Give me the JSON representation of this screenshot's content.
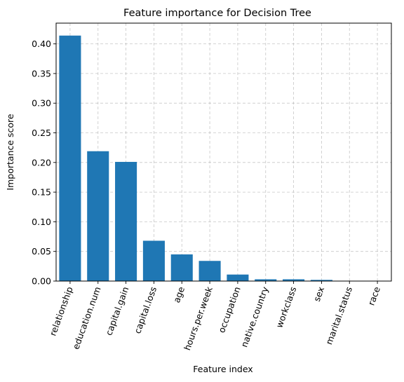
{
  "chart_data": {
    "type": "bar",
    "title": "Feature importance for Decision Tree",
    "xlabel": "Feature index",
    "ylabel": "Importance score",
    "categories": [
      "relationship",
      "education.num",
      "capital.gain",
      "capital.loss",
      "age",
      "hours.per.week",
      "occupation",
      "native.country",
      "workclass",
      "sex",
      "marital.status",
      "race"
    ],
    "values": [
      0.414,
      0.219,
      0.201,
      0.068,
      0.045,
      0.034,
      0.011,
      0.003,
      0.003,
      0.002,
      0.0,
      0.0
    ],
    "ylim": [
      0,
      0.435
    ],
    "yticks": [
      "0.00",
      "0.05",
      "0.10",
      "0.15",
      "0.20",
      "0.25",
      "0.30",
      "0.35",
      "0.40"
    ],
    "grid": true,
    "bar_color": "#1f77b4",
    "xtick_rotation_deg": -70
  }
}
